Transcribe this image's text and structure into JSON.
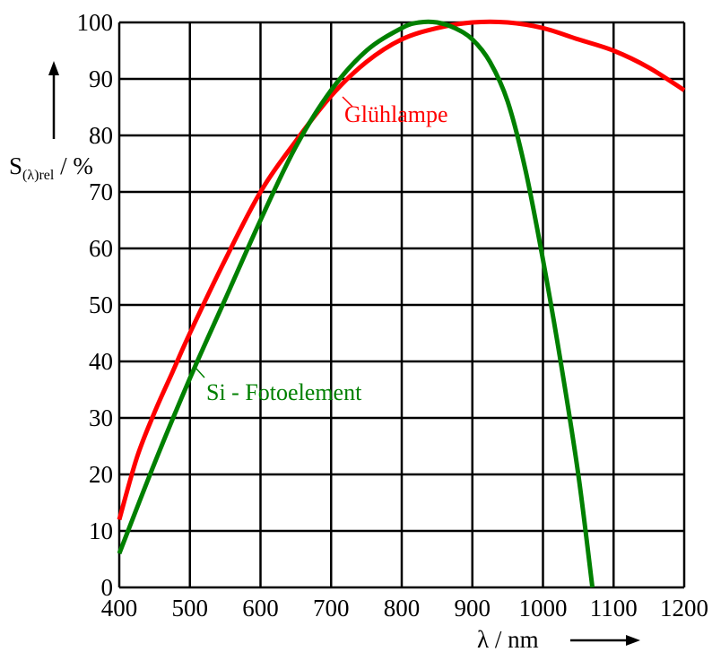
{
  "chart_data": {
    "type": "line",
    "xlim": [
      400,
      1200
    ],
    "ylim": [
      0,
      100
    ],
    "x_ticks": [
      "400",
      "500",
      "600",
      "700",
      "800",
      "900",
      "1000",
      "1100",
      "1200"
    ],
    "y_ticks": [
      "0",
      "10",
      "20",
      "30",
      "40",
      "50",
      "60",
      "70",
      "80",
      "90",
      "100"
    ],
    "xlabel": "λ / nm",
    "ylabel": {
      "main": "S",
      "sub": "(λ)rel",
      "rest": " / %"
    },
    "grid": true,
    "series": [
      {
        "name": "Glühlampe",
        "color": "#ff0000",
        "x": [
          400,
          425,
          450,
          475,
          500,
          550,
          600,
          650,
          700,
          750,
          800,
          850,
          900,
          950,
          1000,
          1050,
          1100,
          1150,
          1200
        ],
        "y": [
          12,
          23,
          31,
          38,
          45,
          58,
          70,
          79,
          87,
          93,
          97,
          99,
          100,
          100,
          99,
          97,
          95,
          92,
          88
        ]
      },
      {
        "name": "Si - Fotoelement",
        "color": "#008000",
        "x": [
          400,
          450,
          500,
          550,
          600,
          650,
          700,
          750,
          800,
          825,
          850,
          875,
          900,
          925,
          950,
          975,
          1000,
          1025,
          1050,
          1070
        ],
        "y": [
          6,
          22,
          37,
          51,
          65,
          78,
          88,
          95,
          99,
          100,
          100,
          99,
          97,
          93,
          86,
          74,
          58,
          40,
          20,
          0
        ]
      }
    ]
  }
}
